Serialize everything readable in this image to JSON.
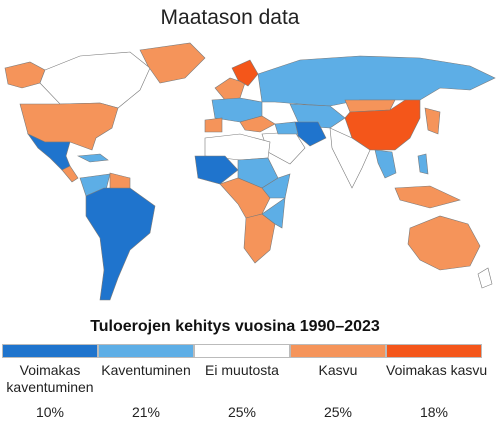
{
  "header": {
    "title": "Maatason data"
  },
  "legend": {
    "title": "Tuloerojen kehitys vuosina 1990–2023",
    "items": [
      {
        "label": "Voimakas kaventuminen",
        "color": "#1f74cd",
        "share": "10%"
      },
      {
        "label": "Kaventuminen",
        "color": "#5daee6",
        "share": "21%"
      },
      {
        "label": "Ei muutosta",
        "color": "#ffffff",
        "share": "25%"
      },
      {
        "label": "Kasvu",
        "color": "#f5945a",
        "share": "25%"
      },
      {
        "label": "Voimakas kasvu",
        "color": "#f4561a",
        "share": "18%"
      }
    ]
  }
}
